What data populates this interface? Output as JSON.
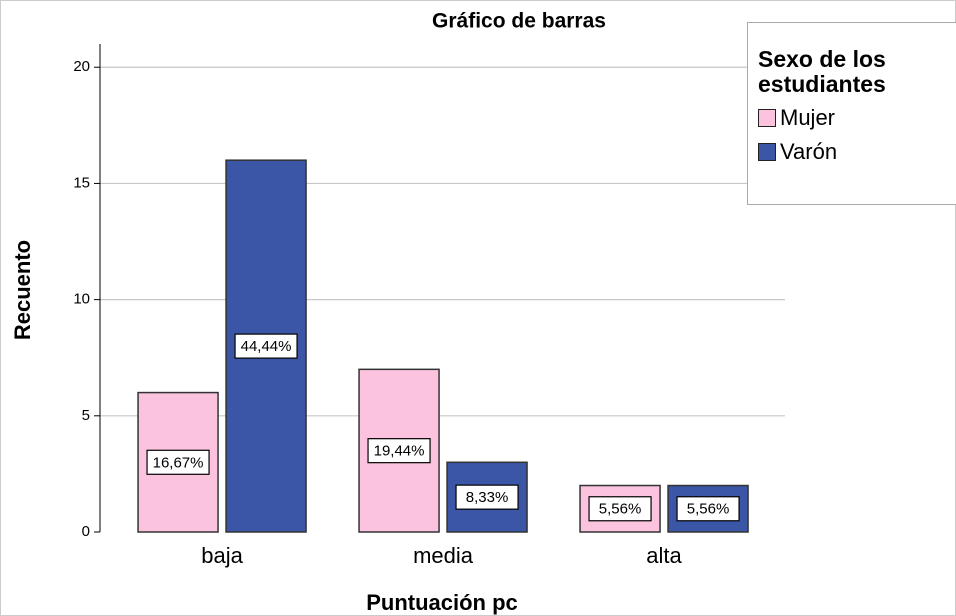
{
  "chart_data": {
    "type": "bar",
    "title": "Gráfico de barras",
    "x_label": "Puntuación pc",
    "y_label": "Recuento",
    "categories": [
      "baja",
      "media",
      "alta"
    ],
    "series": [
      {
        "name": "Mujer",
        "color": "#fcc3df",
        "values": [
          6,
          7,
          2
        ],
        "percent_labels": [
          "16,67%",
          "19,44%",
          "5,56%"
        ]
      },
      {
        "name": "Varón",
        "color": "#3b56a6",
        "values": [
          16,
          3,
          2
        ],
        "percent_labels": [
          "44,44%",
          "8,33%",
          "5,56%"
        ]
      }
    ],
    "legend_title": "Sexo de los estudiantes",
    "legend_position": "upper right",
    "ylim": [
      0,
      21
    ],
    "yticks": [
      0,
      5,
      10,
      15,
      20
    ],
    "grid": true
  }
}
